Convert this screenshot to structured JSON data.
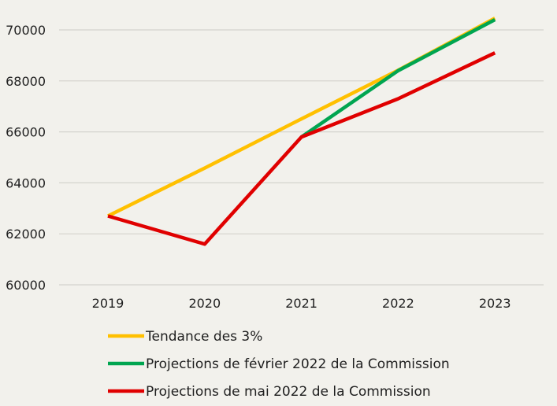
{
  "chart_data": {
    "type": "line",
    "title": "",
    "xlabel": "",
    "ylabel": "",
    "x": [
      "2019",
      "2020",
      "2021",
      "2022",
      "2023"
    ],
    "ylim": [
      60000,
      70000
    ],
    "yticks": [
      60000,
      62000,
      64000,
      66000,
      68000,
      70000
    ],
    "ytick_labels": [
      "60000",
      "62000",
      "64000",
      "66000",
      "68000",
      "70000"
    ],
    "grid": "horizontal",
    "legend_position": "bottom",
    "series": [
      {
        "name": "Tendance des 3%",
        "color": "#FFC000",
        "values": [
          62700,
          64580,
          66510,
          68420,
          70460
        ]
      },
      {
        "name": "Projections de février 2022 de la Commission",
        "color": "#00A550",
        "values": [
          null,
          null,
          65800,
          68400,
          70400
        ]
      },
      {
        "name": "Projections de mai 2022 de la Commission",
        "color": "#E00000",
        "values": [
          62700,
          61600,
          65800,
          67300,
          69100
        ]
      }
    ]
  }
}
